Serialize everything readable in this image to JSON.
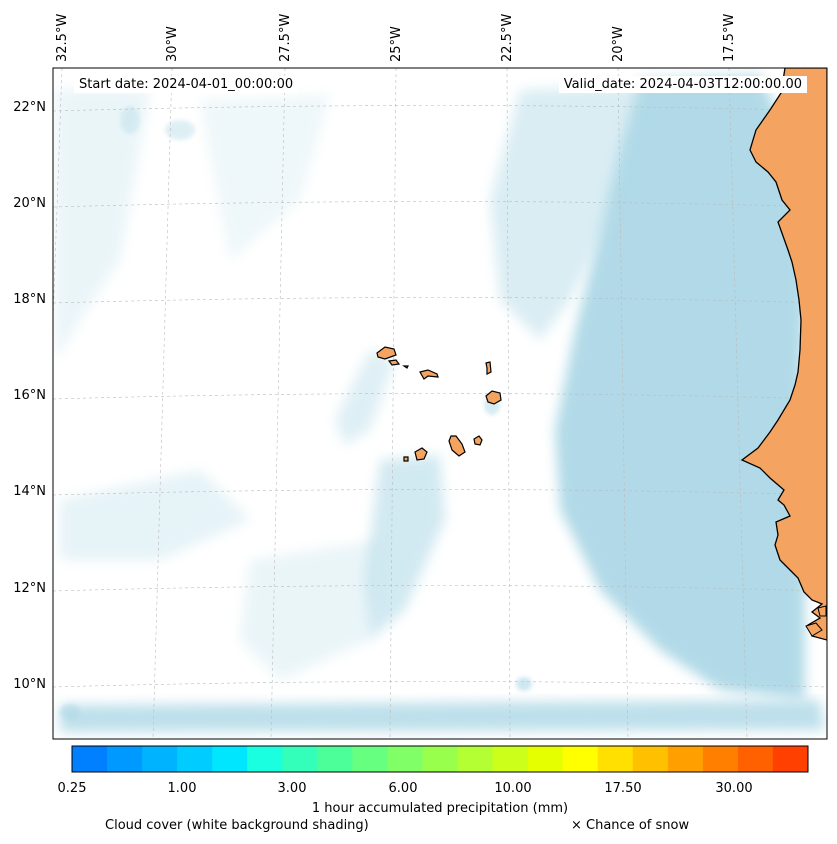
{
  "map": {
    "start_date": "Start date: 2024-04-01_00:00:00",
    "valid_date": "Valid_date: 2024-04-03T12:00:00.00",
    "lon_labels": [
      "32.5°W",
      "30°W",
      "27.5°W",
      "25°W",
      "22.5°W",
      "20°W",
      "17.5°W"
    ],
    "lat_labels": [
      "22°N",
      "20°N",
      "18°N",
      "16°N",
      "14°N",
      "12°N",
      "10°N"
    ],
    "colors": {
      "land": "#f4a460",
      "cloud": "#add8e6",
      "coastline": "#000000",
      "grid": "#bbbbbb"
    }
  },
  "colorbar": {
    "title": "1 hour accumulated precipitation (mm)",
    "tick_labels": [
      "0.25",
      "1.00",
      "3.00",
      "6.00",
      "10.00",
      "17.50",
      "30.00"
    ],
    "colors": [
      "#0080ff",
      "#0099ff",
      "#00b3ff",
      "#00ccff",
      "#00e6ff",
      "#1affe0",
      "#33ffbb",
      "#4dff99",
      "#66ff80",
      "#80ff66",
      "#99ff4d",
      "#b3ff33",
      "#ccff1a",
      "#e6ff00",
      "#ffff00",
      "#ffe000",
      "#ffc000",
      "#ffa000",
      "#ff8000",
      "#ff6000",
      "#ff4000"
    ]
  },
  "legend": {
    "cloud_note": "Cloud cover (white background shading)",
    "snow_note": "× Chance of snow"
  }
}
